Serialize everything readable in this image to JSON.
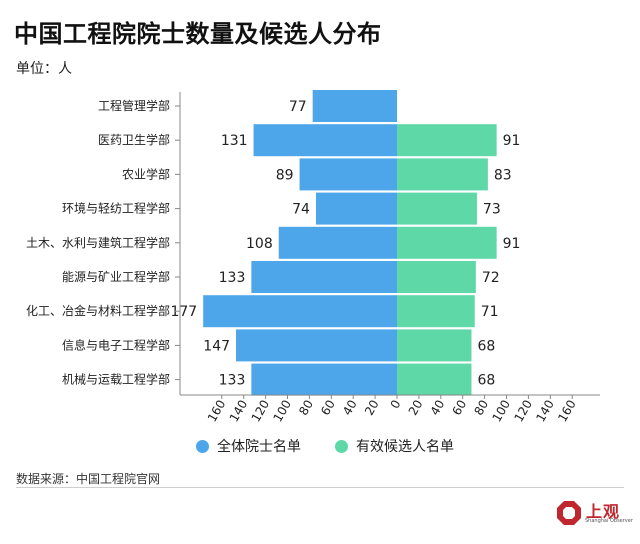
{
  "title": "中国工程院院士数量及候选人分布",
  "unit": "单位：人",
  "source": "数据来源：中国工程院官网",
  "logo": {
    "name": "上观",
    "sub": "Shanghai Observer"
  },
  "colors": {
    "left": "#4da6ea",
    "right": "#5fd8a8",
    "logo": "#c0262d"
  },
  "chart_data": {
    "type": "bar",
    "orientation": "horizontal-diverging",
    "categories": [
      "工程管理学部",
      "医药卫生学部",
      "农业学部",
      "环境与轻纺工程学部",
      "土木、水利与建筑工程学部",
      "能源与矿业工程学部",
      "化工、冶金与材料工程学部",
      "信息与电子工程学部",
      "机械与运载工程学部"
    ],
    "series": [
      {
        "name": "全体院士名单",
        "values": [
          77,
          131,
          89,
          74,
          108,
          133,
          177,
          147,
          133
        ]
      },
      {
        "name": "有效候选人名单",
        "values": [
          null,
          91,
          83,
          73,
          91,
          72,
          71,
          68,
          68
        ]
      }
    ],
    "xticks": [
      "160",
      "140",
      "120",
      "100",
      "80",
      "60",
      "40",
      "20",
      "0",
      "20",
      "40",
      "60",
      "80",
      "100",
      "120",
      "140",
      "160"
    ],
    "xlim": [
      -160,
      160
    ],
    "grid": false,
    "legend_position": "bottom"
  }
}
